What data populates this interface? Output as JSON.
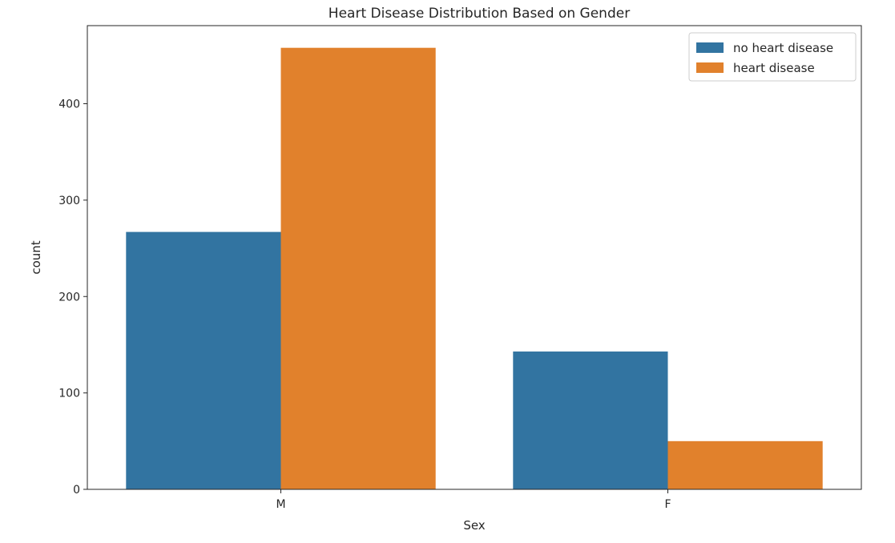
{
  "chart_data": {
    "type": "bar",
    "title": "Heart Disease Distribution Based on Gender",
    "xlabel": "Sex",
    "ylabel": "count",
    "categories": [
      "M",
      "F"
    ],
    "series": [
      {
        "name": "no heart disease",
        "values": [
          267,
          143
        ],
        "color": "#3274a1"
      },
      {
        "name": "heart disease",
        "values": [
          458,
          50
        ],
        "color": "#e1812c"
      }
    ],
    "ylim": [
      0,
      481
    ],
    "yticks": [
      0,
      100,
      200,
      300,
      400
    ],
    "grid": false,
    "legend_position": "top-right"
  }
}
